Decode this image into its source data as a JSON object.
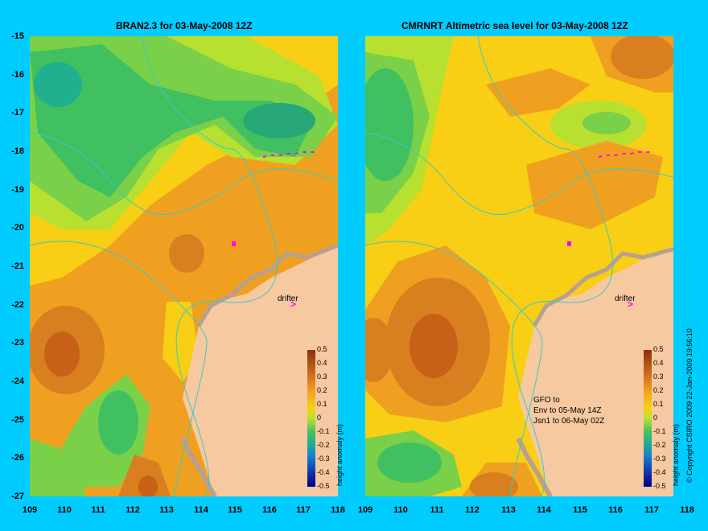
{
  "left_panel": {
    "title": "BRAN2.3 for 03-May-2008 12Z",
    "drifter_label": "drifter"
  },
  "right_panel": {
    "title": "CMRNRT Altimetric sea level  for 03-May-2008 12Z",
    "drifter_label": "drifter",
    "note_lines": [
      "GFO to",
      "Env to 05-May 14Z",
      "Jsn1 to 06-May 02Z"
    ]
  },
  "y_labels": [
    "-15",
    "-16",
    "-17",
    "-18",
    "-19",
    "-20",
    "-21",
    "-22",
    "-23",
    "-24",
    "-25",
    "-26",
    "-27"
  ],
  "x_labels": [
    "109",
    "110",
    "111",
    "112",
    "113",
    "114",
    "115",
    "116",
    "117",
    "118"
  ],
  "colorbar": {
    "title": "height anomaly (m)",
    "ticks": [
      "0.5",
      "0.4",
      "0.3",
      "0.2",
      "0.1",
      "0",
      "-0.1",
      "-0.2",
      "-0.3",
      "-0.4",
      "-0.5"
    ]
  },
  "copyright": "© Copyright CSIRO 2009    22-Jan-2009 19:56:10",
  "colors": {
    "background": "#00ccff",
    "land": "#f7c9a0",
    "coast": "#b8a090",
    "contour": "#33cccc",
    "marker": "#ff00ff"
  }
}
